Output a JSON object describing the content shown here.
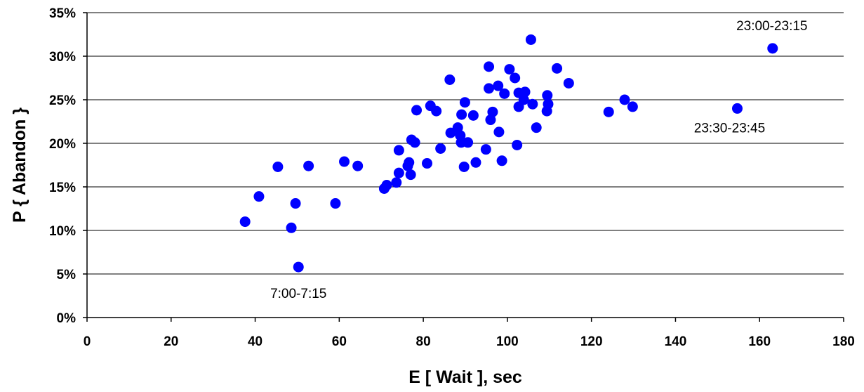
{
  "chart_data": {
    "type": "scatter",
    "xlabel": "E [ Wait ], sec",
    "ylabel": "P { Abandon }",
    "xlim": [
      0,
      180
    ],
    "ylim": [
      0,
      0.35
    ],
    "x_ticks": [
      {
        "value": 0,
        "label": "0"
      },
      {
        "value": 20,
        "label": "20"
      },
      {
        "value": 40,
        "label": "40"
      },
      {
        "value": 60,
        "label": "60"
      },
      {
        "value": 80,
        "label": "80"
      },
      {
        "value": 100,
        "label": "100"
      },
      {
        "value": 120,
        "label": "120"
      },
      {
        "value": 140,
        "label": "140"
      },
      {
        "value": 160,
        "label": "160"
      },
      {
        "value": 180,
        "label": "180"
      }
    ],
    "y_ticks": [
      {
        "value": 0,
        "label": "0%"
      },
      {
        "value": 0.05,
        "label": "5%"
      },
      {
        "value": 0.1,
        "label": "10%"
      },
      {
        "value": 0.15,
        "label": "15%"
      },
      {
        "value": 0.2,
        "label": "20%"
      },
      {
        "value": 0.25,
        "label": "25%"
      },
      {
        "value": 0.3,
        "label": "30%"
      },
      {
        "value": 0.35,
        "label": "35%"
      }
    ],
    "grid": "horizontal",
    "marker_color": "#0000ff",
    "series": [
      {
        "points": [
          [
            37.6,
            0.11
          ],
          [
            40.9,
            0.139
          ],
          [
            45.4,
            0.173
          ],
          [
            48.6,
            0.103
          ],
          [
            49.6,
            0.131
          ],
          [
            50.3,
            0.058
          ],
          [
            52.7,
            0.174
          ],
          [
            59.1,
            0.131
          ],
          [
            61.2,
            0.179
          ],
          [
            64.4,
            0.174
          ],
          [
            70.7,
            0.148
          ],
          [
            71.3,
            0.152
          ],
          [
            73.6,
            0.155
          ],
          [
            74.2,
            0.166
          ],
          [
            74.2,
            0.192
          ],
          [
            76.3,
            0.174
          ],
          [
            76.6,
            0.178
          ],
          [
            77.0,
            0.164
          ],
          [
            77.2,
            0.204
          ],
          [
            78.0,
            0.201
          ],
          [
            78.4,
            0.238
          ],
          [
            80.9,
            0.177
          ],
          [
            81.7,
            0.243
          ],
          [
            83.1,
            0.237
          ],
          [
            84.1,
            0.194
          ],
          [
            86.3,
            0.273
          ],
          [
            86.5,
            0.212
          ],
          [
            88.2,
            0.218
          ],
          [
            88.8,
            0.209
          ],
          [
            89.0,
            0.201
          ],
          [
            89.1,
            0.233
          ],
          [
            89.7,
            0.173
          ],
          [
            89.9,
            0.247
          ],
          [
            90.6,
            0.201
          ],
          [
            91.9,
            0.232
          ],
          [
            92.5,
            0.178
          ],
          [
            94.9,
            0.193
          ],
          [
            95.6,
            0.288
          ],
          [
            95.6,
            0.263
          ],
          [
            96.0,
            0.227
          ],
          [
            96.5,
            0.236
          ],
          [
            97.8,
            0.266
          ],
          [
            98.0,
            0.213
          ],
          [
            98.7,
            0.18
          ],
          [
            99.3,
            0.257
          ],
          [
            100.5,
            0.285
          ],
          [
            101.8,
            0.275
          ],
          [
            102.3,
            0.198
          ],
          [
            102.7,
            0.258
          ],
          [
            102.7,
            0.242
          ],
          [
            103.9,
            0.25
          ],
          [
            104.2,
            0.259
          ],
          [
            105.6,
            0.319
          ],
          [
            106.0,
            0.245
          ],
          [
            106.9,
            0.218
          ],
          [
            109.4,
            0.237
          ],
          [
            109.5,
            0.255
          ],
          [
            109.7,
            0.245
          ],
          [
            111.8,
            0.286
          ],
          [
            114.6,
            0.269
          ],
          [
            124.1,
            0.236
          ],
          [
            127.9,
            0.25
          ],
          [
            129.8,
            0.242
          ],
          [
            154.7,
            0.24
          ],
          [
            163.1,
            0.309
          ]
        ]
      }
    ],
    "annotations": [
      {
        "text": "23:00-23:15",
        "x": 163.1,
        "y": 0.309
      },
      {
        "text": "23:30-23:45",
        "x": 154.7,
        "y": 0.24
      },
      {
        "text": "7:00-7:15",
        "x": 50.3,
        "y": 0.058
      }
    ]
  }
}
